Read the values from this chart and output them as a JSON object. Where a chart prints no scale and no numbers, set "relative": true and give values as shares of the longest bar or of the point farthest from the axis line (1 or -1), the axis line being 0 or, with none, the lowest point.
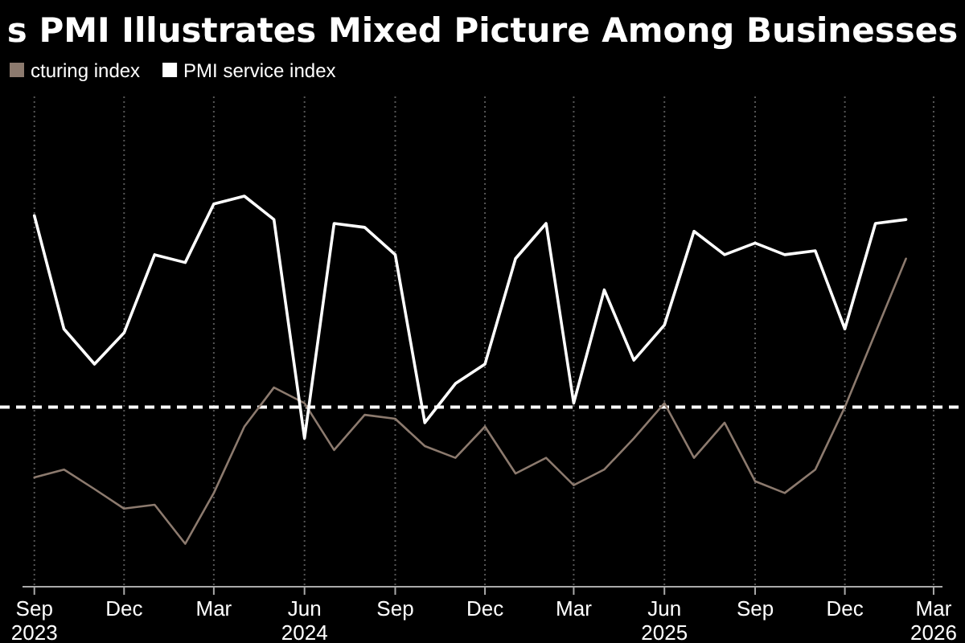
{
  "chart_data": {
    "type": "line",
    "title": "s PMI Illustrates Mixed Picture Among Businesses",
    "relative": true,
    "x": [
      "2023-09",
      "2023-10",
      "2023-11",
      "2023-12",
      "2024-01",
      "2024-02",
      "2024-03",
      "2024-04",
      "2024-05",
      "2024-06",
      "2024-07",
      "2024-08",
      "2024-09",
      "2024-10",
      "2024-11",
      "2024-12",
      "2025-01",
      "2025-02",
      "2025-03",
      "2025-04",
      "2025-05",
      "2025-06",
      "2025-07",
      "2025-08",
      "2025-09",
      "2025-10",
      "2025-11",
      "2025-12",
      "2026-01",
      "2026-02"
    ],
    "xlim": [
      "2023-08-20",
      "2026-03-10"
    ],
    "xticks": [
      {
        "value": "2023-09",
        "label": "Sep\n2023"
      },
      {
        "value": "2023-12",
        "label": "Dec"
      },
      {
        "value": "2024-03",
        "label": "Mar"
      },
      {
        "value": "2024-06",
        "label": "Jun\n2024"
      },
      {
        "value": "2024-09",
        "label": "Sep"
      },
      {
        "value": "2024-12",
        "label": "Dec"
      },
      {
        "value": "2025-03",
        "label": "Mar"
      },
      {
        "value": "2025-06",
        "label": "Jun\n2025"
      },
      {
        "value": "2025-09",
        "label": "Sep"
      },
      {
        "value": "2025-12",
        "label": "Dec"
      },
      {
        "value": "2026-03",
        "label": "Mar\n2026"
      }
    ],
    "series": [
      {
        "name": "cturing index",
        "color": "#8c7a6e",
        "values": [
          0.28,
          0.3,
          0.25,
          0.2,
          0.21,
          0.11,
          0.24,
          0.41,
          0.51,
          0.47,
          0.35,
          0.44,
          0.43,
          0.36,
          0.33,
          0.41,
          0.29,
          0.33,
          0.26,
          0.3,
          0.38,
          0.47,
          0.33,
          0.42,
          0.27,
          0.24,
          0.3,
          0.46,
          0.65,
          0.84
        ]
      },
      {
        "name": "PMI service index",
        "color": "#ffffff",
        "values": [
          0.95,
          0.66,
          0.57,
          0.65,
          0.85,
          0.83,
          0.98,
          1.0,
          0.94,
          0.38,
          0.93,
          0.92,
          0.85,
          0.42,
          0.52,
          0.57,
          0.84,
          0.93,
          0.47,
          0.76,
          0.58,
          0.67,
          0.91,
          0.85,
          0.88,
          0.85,
          0.86,
          0.66,
          0.93,
          0.94
        ]
      }
    ],
    "ref_lines": [
      {
        "axis": "y",
        "value": 0.46,
        "color": "#ffffff",
        "line_style": "dashed"
      }
    ],
    "grid": "x",
    "legend": "top left",
    "line_style": "solid",
    "marker": "none"
  }
}
